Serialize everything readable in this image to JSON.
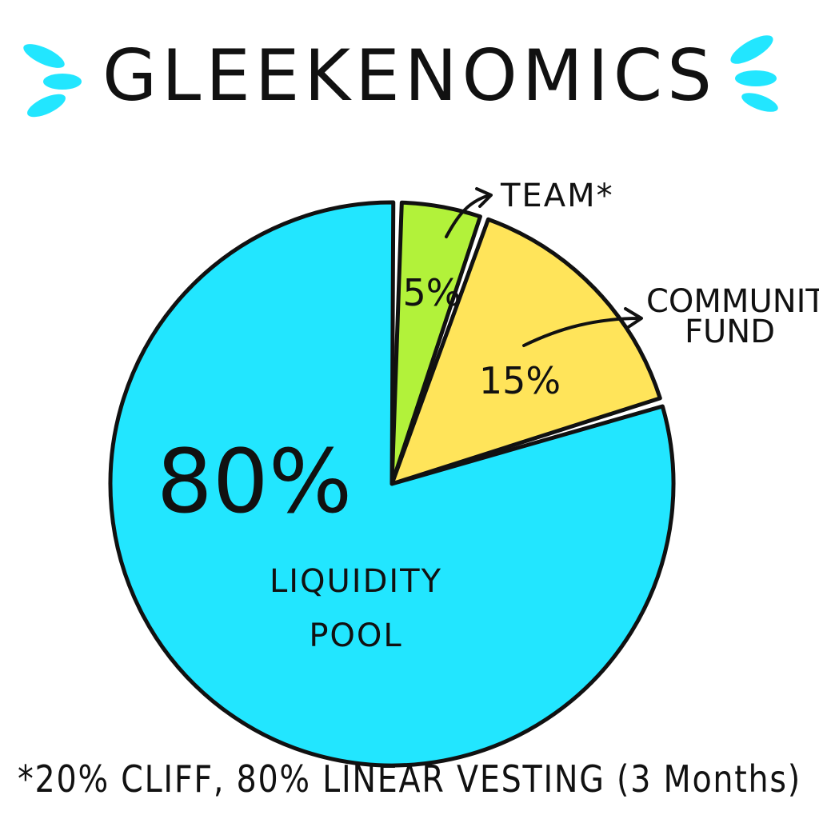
{
  "chart_data": {
    "type": "pie",
    "title": "GLEEKENOMICS",
    "slices": [
      {
        "label": "LIQUIDITY POOL",
        "line1": "LIQUIDITY",
        "line2": "POOL",
        "value": 80,
        "value_label": "80%",
        "color": "#22e6ff"
      },
      {
        "label": "TEAM*",
        "value": 5,
        "value_label": "5%",
        "color": "#b2f23a"
      },
      {
        "label": "COMMUNITY FUND",
        "line1": "COMMUNITY",
        "line2": "FUND",
        "value": 15,
        "value_label": "15%",
        "color": "#ffe45a"
      }
    ],
    "footnote": "*20% CLIFF, 80% LINEAR VESTING (3 Months)",
    "accent_color": "#22e6ff",
    "outline_color": "#111111"
  }
}
